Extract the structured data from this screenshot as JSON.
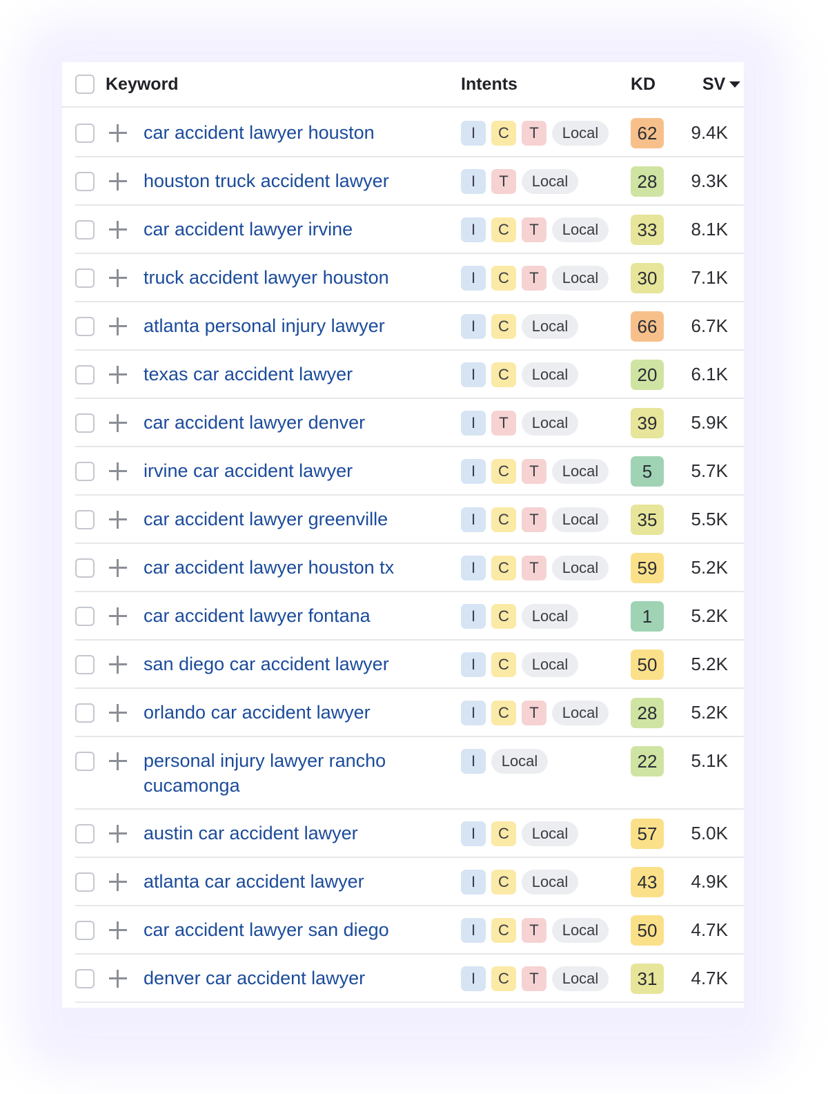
{
  "header": {
    "keyword": "Keyword",
    "intents": "Intents",
    "kd": "KD",
    "sv": "SV"
  },
  "kd_colors": {
    "very_easy": "#9fd3b4",
    "easy": "#cfe4a2",
    "possible": "#e6e59a",
    "moderate": "#fbe08a",
    "difficult": "#f7c08b"
  },
  "rows": [
    {
      "keyword": "car accident lawyer houston",
      "intents": [
        "I",
        "C",
        "T",
        "Local"
      ],
      "kd": "62",
      "kd_color": "#f7c08b",
      "sv": "9.4K"
    },
    {
      "keyword": "houston truck accident lawyer",
      "intents": [
        "I",
        "T",
        "Local"
      ],
      "kd": "28",
      "kd_color": "#cfe4a2",
      "sv": "9.3K"
    },
    {
      "keyword": "car accident lawyer irvine",
      "intents": [
        "I",
        "C",
        "T",
        "Local"
      ],
      "kd": "33",
      "kd_color": "#e6e59a",
      "sv": "8.1K"
    },
    {
      "keyword": "truck accident lawyer houston",
      "intents": [
        "I",
        "C",
        "T",
        "Local"
      ],
      "kd": "30",
      "kd_color": "#e6e59a",
      "sv": "7.1K"
    },
    {
      "keyword": "atlanta personal injury lawyer",
      "intents": [
        "I",
        "C",
        "Local"
      ],
      "kd": "66",
      "kd_color": "#f7c08b",
      "sv": "6.7K"
    },
    {
      "keyword": "texas car accident lawyer",
      "intents": [
        "I",
        "C",
        "Local"
      ],
      "kd": "20",
      "kd_color": "#cfe4a2",
      "sv": "6.1K"
    },
    {
      "keyword": "car accident lawyer denver",
      "intents": [
        "I",
        "T",
        "Local"
      ],
      "kd": "39",
      "kd_color": "#e6e59a",
      "sv": "5.9K"
    },
    {
      "keyword": "irvine car accident lawyer",
      "intents": [
        "I",
        "C",
        "T",
        "Local"
      ],
      "kd": "5",
      "kd_color": "#9fd3b4",
      "sv": "5.7K"
    },
    {
      "keyword": "car accident lawyer greenville",
      "intents": [
        "I",
        "C",
        "T",
        "Local"
      ],
      "kd": "35",
      "kd_color": "#e6e59a",
      "sv": "5.5K"
    },
    {
      "keyword": "car accident lawyer houston tx",
      "intents": [
        "I",
        "C",
        "T",
        "Local"
      ],
      "kd": "59",
      "kd_color": "#fbe08a",
      "sv": "5.2K"
    },
    {
      "keyword": "car accident lawyer fontana",
      "intents": [
        "I",
        "C",
        "Local"
      ],
      "kd": "1",
      "kd_color": "#9fd3b4",
      "sv": "5.2K"
    },
    {
      "keyword": "san diego car accident lawyer",
      "intents": [
        "I",
        "C",
        "Local"
      ],
      "kd": "50",
      "kd_color": "#fbe08a",
      "sv": "5.2K"
    },
    {
      "keyword": "orlando car accident lawyer",
      "intents": [
        "I",
        "C",
        "T",
        "Local"
      ],
      "kd": "28",
      "kd_color": "#cfe4a2",
      "sv": "5.2K"
    },
    {
      "keyword": "personal injury lawyer rancho cucamonga",
      "intents": [
        "I",
        "Local"
      ],
      "kd": "22",
      "kd_color": "#cfe4a2",
      "sv": "5.1K"
    },
    {
      "keyword": "austin car accident lawyer",
      "intents": [
        "I",
        "C",
        "Local"
      ],
      "kd": "57",
      "kd_color": "#fbe08a",
      "sv": "5.0K"
    },
    {
      "keyword": "atlanta car accident lawyer",
      "intents": [
        "I",
        "C",
        "Local"
      ],
      "kd": "43",
      "kd_color": "#fbe08a",
      "sv": "4.9K"
    },
    {
      "keyword": "car accident lawyer san diego",
      "intents": [
        "I",
        "C",
        "T",
        "Local"
      ],
      "kd": "50",
      "kd_color": "#fbe08a",
      "sv": "4.7K"
    },
    {
      "keyword": "denver car accident lawyer",
      "intents": [
        "I",
        "C",
        "T",
        "Local"
      ],
      "kd": "31",
      "kd_color": "#e6e59a",
      "sv": "4.7K"
    }
  ]
}
